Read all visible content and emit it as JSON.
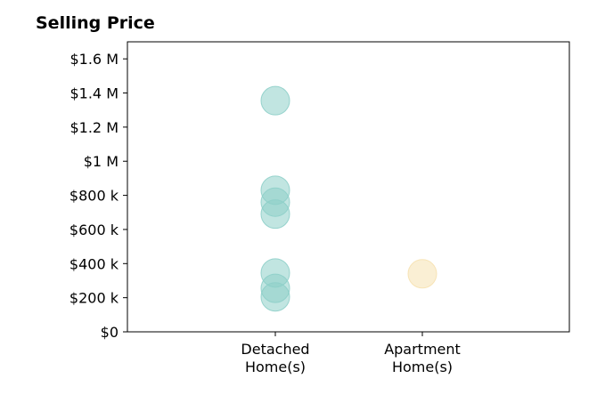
{
  "chart_data": {
    "type": "scatter",
    "title": "Selling Price",
    "categories": [
      "Detached\nHome(s)",
      "Apartment\nHome(s)"
    ],
    "y_tick_labels": [
      "$0",
      "$200 k",
      "$400 k",
      "$600 k",
      "$800 k",
      "$1 M",
      "$1.2 M",
      "$1.4 M",
      "$1.6 M"
    ],
    "y_ticks": [
      0,
      200000,
      400000,
      600000,
      800000,
      1000000,
      1200000,
      1400000,
      1600000
    ],
    "ylim": [
      0,
      1700000
    ],
    "grid": false,
    "series": [
      {
        "category": "Detached\nHome(s)",
        "color": "#8ecfc9",
        "values": [
          1355000,
          830000,
          760000,
          690000,
          345000,
          255000,
          205000
        ]
      },
      {
        "category": "Apartment\nHome(s)",
        "color": "#f6e1b0",
        "values": [
          340000
        ]
      }
    ]
  }
}
